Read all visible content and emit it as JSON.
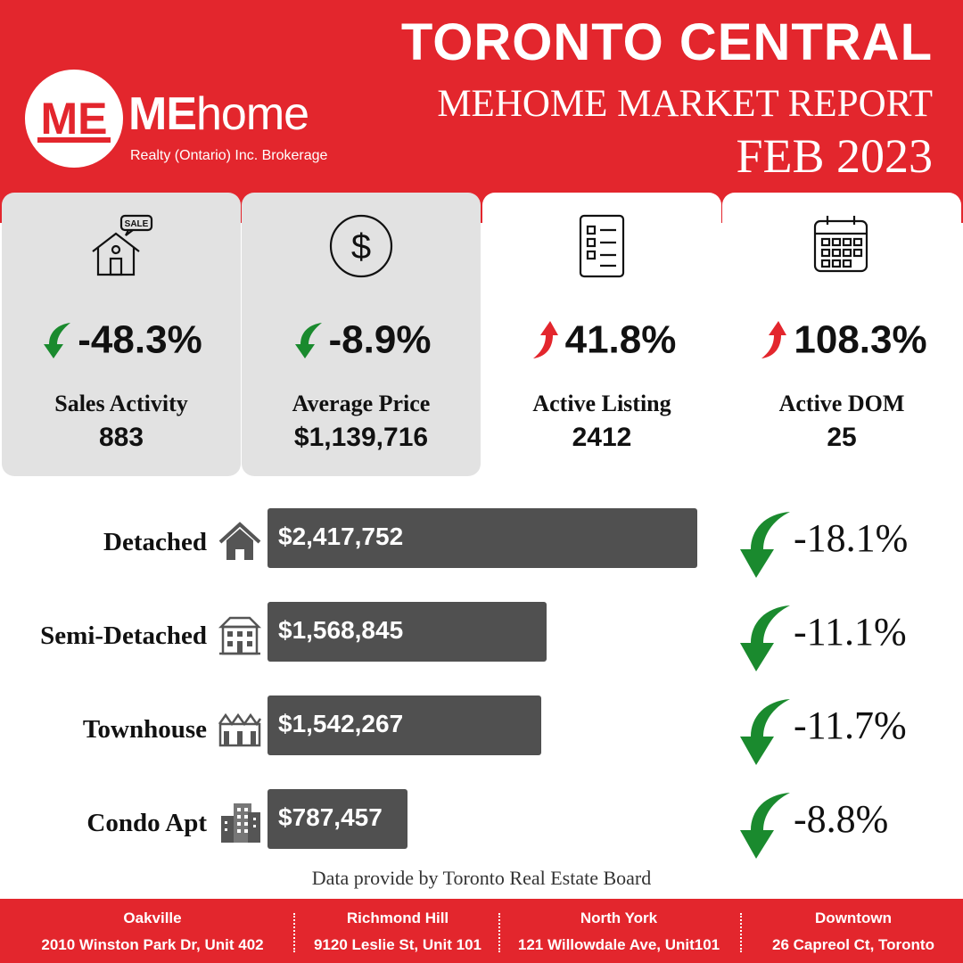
{
  "header": {
    "title": "TORONTO CENTRAL",
    "report": "MEHOME MARKET REPORT",
    "date": "FEB 2023"
  },
  "brand": {
    "logo_letters": "ME",
    "logo_name_bold": "ME",
    "logo_name_light": "home",
    "logo_sub": "Realty (Ontario) Inc. Brokerage"
  },
  "colors": {
    "brand_red": "#e3262d",
    "down_green": "#1a8a2e",
    "up_red": "#e3262d",
    "bar_gray": "#505050",
    "card_gray": "#e2e2e2"
  },
  "cards": [
    {
      "icon": "sale-house-icon",
      "direction": "down",
      "change": "-48.3%",
      "label": "Sales Activity",
      "value": "883"
    },
    {
      "icon": "dollar-icon",
      "direction": "down",
      "change": "-8.9%",
      "label": "Average Price",
      "value": "$1,139,716"
    },
    {
      "icon": "checklist-icon",
      "direction": "up",
      "change": "41.8%",
      "label": "Active Listing",
      "value": "2412"
    },
    {
      "icon": "calendar-icon",
      "direction": "up",
      "change": "108.3%",
      "label": "Active DOM",
      "value": "25"
    }
  ],
  "property_types": [
    {
      "label": "Detached",
      "icon": "detached-house-icon",
      "price": "$2,417,752",
      "price_value": 2417752,
      "change": "-18.1%",
      "direction": "down"
    },
    {
      "label": "Semi-Detached",
      "icon": "semi-detached-icon",
      "price": "$1,568,845",
      "price_value": 1568845,
      "change": "-11.1%",
      "direction": "down"
    },
    {
      "label": "Townhouse",
      "icon": "townhouse-icon",
      "price": "$1,542,267",
      "price_value": 1542267,
      "change": "-11.7%",
      "direction": "down"
    },
    {
      "label": "Condo Apt",
      "icon": "condo-building-icon",
      "price": "$787,457",
      "price_value": 787457,
      "change": "-8.8%",
      "direction": "down"
    }
  ],
  "source": "Data provide by Toronto Real Estate Board",
  "offices": [
    {
      "name": "Oakville",
      "address": "2010 Winston Park Dr, Unit 402"
    },
    {
      "name": "Richmond Hill",
      "address": "9120 Leslie St, Unit 101"
    },
    {
      "name": "North York",
      "address": "121 Willowdale Ave, Unit101"
    },
    {
      "name": "Downtown",
      "address": "26 Capreol Ct, Toronto"
    }
  ]
}
